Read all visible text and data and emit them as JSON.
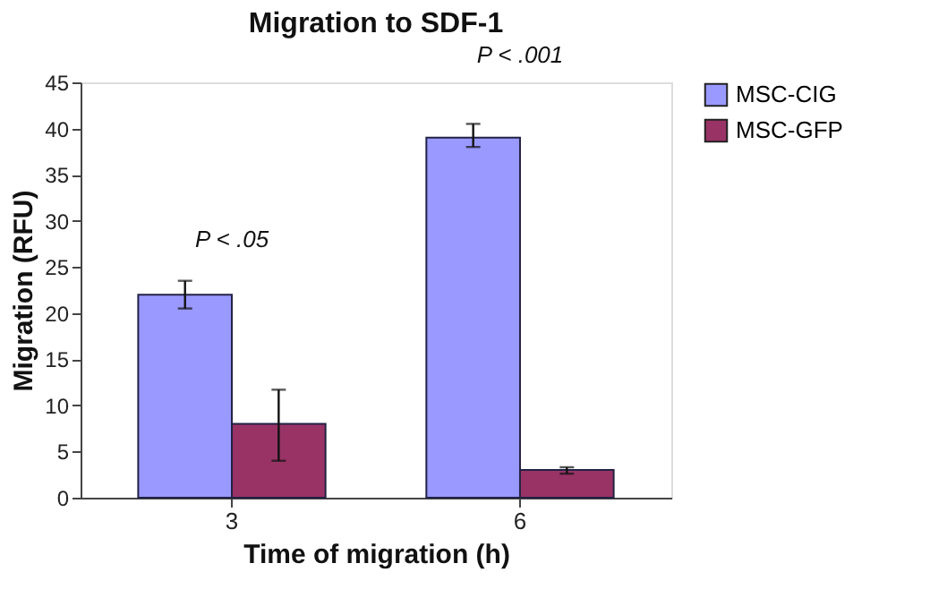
{
  "chart_data": {
    "type": "bar",
    "title": "Migration to SDF-1",
    "xlabel": "Time of migration (h)",
    "ylabel": "Migration (RFU)",
    "categories": [
      "3",
      "6"
    ],
    "series": [
      {
        "name": "MSC-CIG",
        "color": "#9999ff",
        "values": [
          22,
          39
        ],
        "errors": [
          [
            20.5,
            23.5
          ],
          [
            38,
            40.5
          ]
        ]
      },
      {
        "name": "MSC-GFP",
        "color": "#993366",
        "values": [
          8,
          3
        ],
        "errors": [
          [
            4,
            11.7
          ],
          [
            2.6,
            3.3
          ]
        ]
      }
    ],
    "ylim": [
      0,
      45
    ],
    "yticks": [
      0,
      5,
      10,
      15,
      20,
      25,
      30,
      35,
      40,
      45
    ],
    "grid": false,
    "legend": "right",
    "annotations": [
      "P < .05",
      "P < .001"
    ]
  }
}
